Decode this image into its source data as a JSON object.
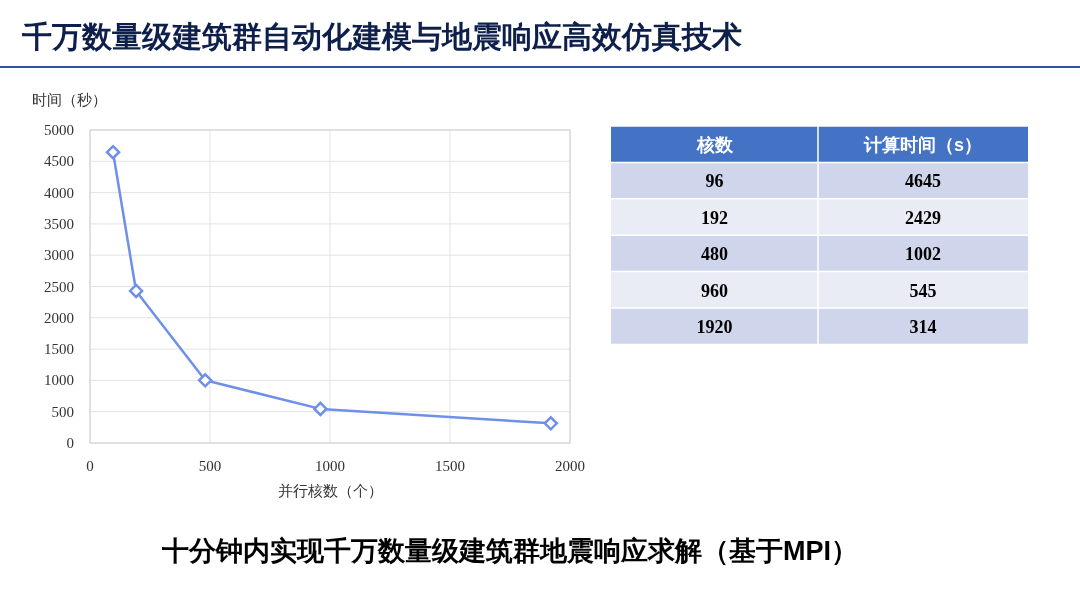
{
  "chart_data": [
    {
      "type": "line",
      "title": "千万数量级建筑群自动化建模与地震响应高效仿真技术",
      "ylabel": "时间（秒）",
      "xlabel": "并行核数（个）",
      "x": [
        96,
        192,
        480,
        960,
        1920
      ],
      "series": [
        {
          "color": "#6f8fe8",
          "values": [
            4645,
            2429,
            1002,
            545,
            314
          ]
        }
      ],
      "xlim": [
        0,
        2000
      ],
      "xticks": [
        0,
        500,
        1000,
        1500,
        2000
      ],
      "ylim": [
        0,
        5000
      ],
      "yticks": [
        0,
        500,
        1000,
        1500,
        2000,
        2500,
        3000,
        3500,
        4000,
        4500,
        5000
      ],
      "grid": true,
      "marker": "diamond",
      "line_style": "solid",
      "annotations": [
        "十分钟内实现千万数量级建筑群地震响应求解（基于MPI）"
      ]
    },
    {
      "type": "other",
      "annotations": [
        "核数",
        "计算时间（s）",
        "96",
        "4645",
        "192",
        "2429",
        "480",
        "1002",
        "960",
        "545",
        "1920",
        "314"
      ]
    }
  ]
}
